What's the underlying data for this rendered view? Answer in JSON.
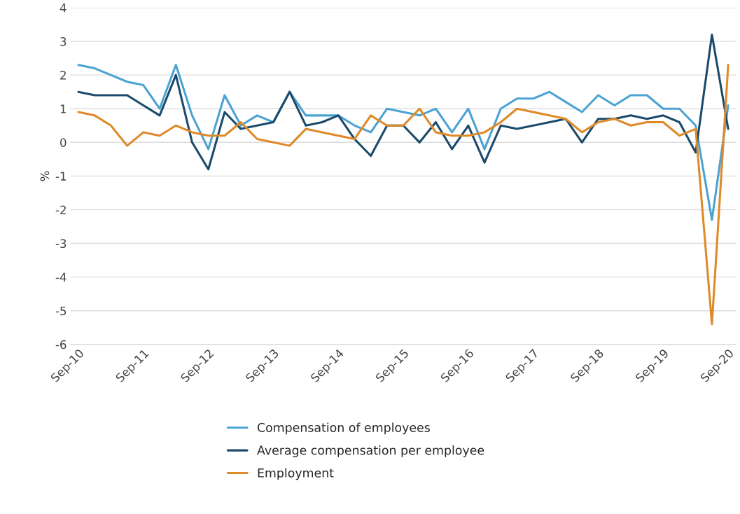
{
  "chart_data": {
    "type": "line",
    "ylabel": "%",
    "categories": [
      "Sep-10",
      null,
      null,
      null,
      "Sep-11",
      null,
      null,
      null,
      "Sep-12",
      null,
      null,
      null,
      "Sep-13",
      null,
      null,
      null,
      "Sep-14",
      null,
      null,
      null,
      "Sep-15",
      null,
      null,
      null,
      "Sep-16",
      null,
      null,
      null,
      "Sep-17",
      null,
      null,
      null,
      "Sep-18",
      null,
      null,
      null,
      "Sep-19",
      null,
      null,
      null,
      "Sep-20"
    ],
    "series": [
      {
        "name": "Compensation of employees",
        "color": "#4ba3d3",
        "values": [
          2.3,
          2.2,
          2.0,
          1.8,
          1.7,
          1.0,
          2.3,
          0.8,
          -0.2,
          1.4,
          0.5,
          0.8,
          0.6,
          1.5,
          0.8,
          0.8,
          0.8,
          0.5,
          0.3,
          1.0,
          0.9,
          0.8,
          1.0,
          0.3,
          1.0,
          -0.2,
          1.0,
          1.3,
          1.3,
          1.5,
          1.2,
          0.9,
          1.4,
          1.1,
          1.4,
          1.4,
          1.0,
          1.0,
          0.5,
          -2.3,
          1.1
        ]
      },
      {
        "name": "Average compensation per employee",
        "color": "#1c4a6b",
        "values": [
          1.5,
          1.4,
          1.4,
          1.4,
          1.1,
          0.8,
          2.0,
          0.0,
          -0.8,
          0.9,
          0.4,
          0.5,
          0.6,
          1.5,
          0.5,
          0.6,
          0.8,
          0.1,
          -0.4,
          0.5,
          0.5,
          0.0,
          0.6,
          -0.2,
          0.5,
          -0.6,
          0.5,
          0.4,
          0.5,
          0.6,
          0.7,
          0.0,
          0.7,
          0.7,
          0.8,
          0.7,
          0.8,
          0.6,
          -0.3,
          3.2,
          0.4
        ]
      },
      {
        "name": "Employment",
        "color": "#df8a2a",
        "values": [
          0.9,
          0.8,
          0.5,
          -0.1,
          0.3,
          0.2,
          0.5,
          0.3,
          0.2,
          0.2,
          0.6,
          0.1,
          0.0,
          -0.1,
          0.4,
          0.3,
          0.2,
          0.1,
          0.8,
          0.5,
          0.5,
          1.0,
          0.3,
          0.2,
          0.2,
          0.3,
          0.6,
          1.0,
          0.9,
          0.8,
          0.7,
          0.3,
          0.6,
          0.7,
          0.5,
          0.6,
          0.6,
          0.2,
          0.4,
          -5.4,
          2.3
        ]
      }
    ],
    "ylim": [
      -6,
      4
    ],
    "yticks": [
      -6,
      -5,
      -4,
      -3,
      -2,
      -1,
      0,
      1,
      2,
      3,
      4
    ],
    "grid": "y",
    "legend": "bottom",
    "marker": "none",
    "line_style": "solid"
  }
}
